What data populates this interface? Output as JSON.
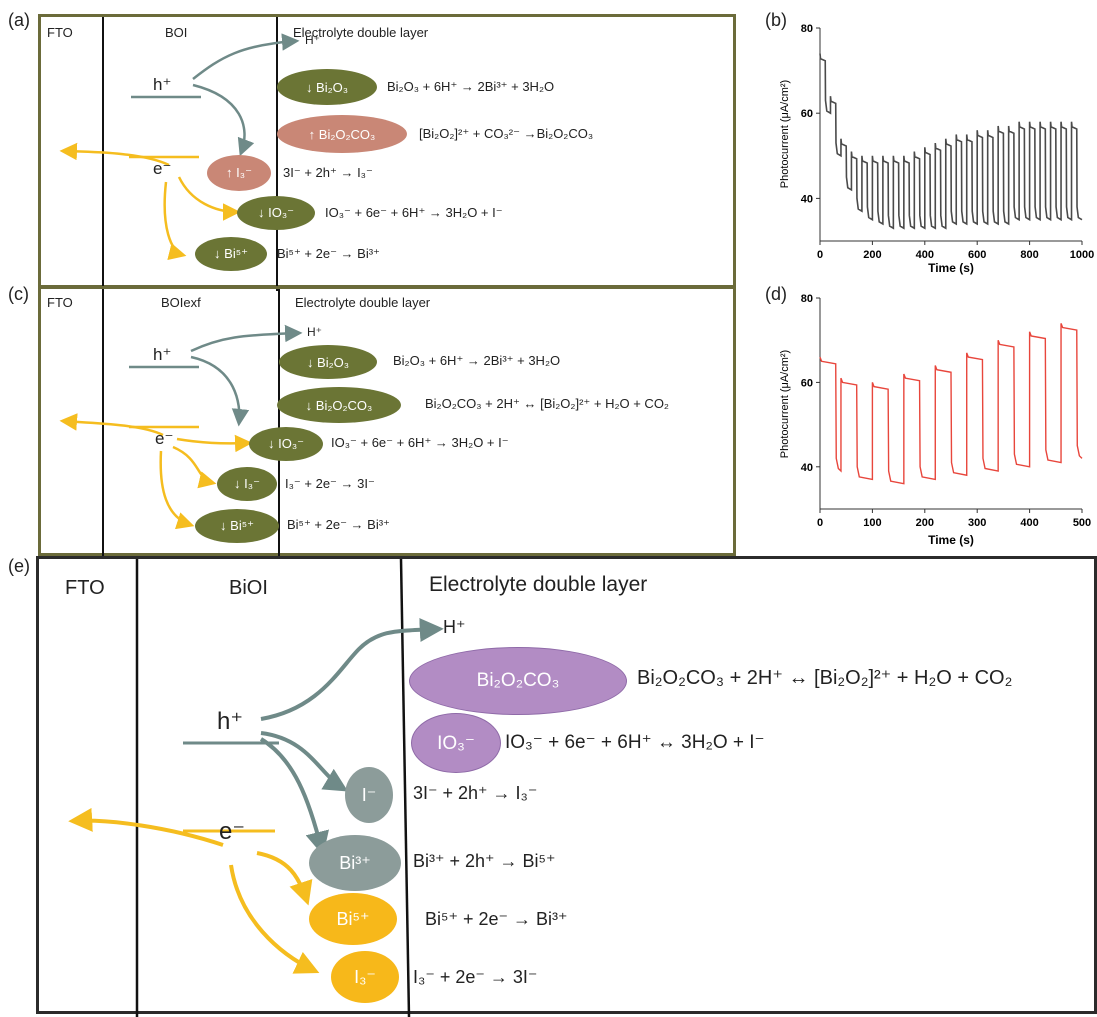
{
  "panel_labels": {
    "a": "(a)",
    "b": "(b)",
    "c": "(c)",
    "d": "(d)",
    "e": "(e)"
  },
  "panel_a": {
    "fto": "FTO",
    "material": "BOI",
    "layer": "Electrolyte double layer",
    "h_plus": "h⁺",
    "e_minus": "e⁻",
    "h_product": "H⁺",
    "eq1": "Bi₂O₃ + 6H⁺ → 2Bi³⁺ + 3H₂O",
    "eq2": "[Bi₂O₂]²⁺ + CO₃²⁻ →Bi₂O₂CO₃",
    "eq3": "3I⁻ + 2h⁺ → I₃⁻",
    "eq4": "IO₃⁻ + 6e⁻ + 6H⁺ → 3H₂O + I⁻",
    "eq5": "Bi⁵⁺ + 2e⁻ → Bi³⁺",
    "sp1": "↓ Bi₂O₃",
    "sp2": "↑ Bi₂O₂CO₃",
    "sp3": "↑ I₃⁻",
    "sp4": "↓ IO₃⁻",
    "sp5": "↓ Bi⁵⁺"
  },
  "panel_c": {
    "fto": "FTO",
    "material": "BOIexf",
    "layer": "Electrolyte double layer",
    "h_plus": "h⁺",
    "e_minus": "e⁻",
    "h_product": "H⁺",
    "eq1": "Bi₂O₃ + 6H⁺ → 2Bi³⁺ + 3H₂O",
    "eq2": "Bi₂O₂CO₃ + 2H⁺ ↔ [Bi₂O₂]²⁺ + H₂O + CO₂",
    "eq3": "IO₃⁻ + 6e⁻ + 6H⁺ → 3H₂O + I⁻",
    "eq4": "I₃⁻ + 2e⁻ → 3I⁻",
    "eq5": "Bi⁵⁺ + 2e⁻ → Bi³⁺",
    "sp1": "↓ Bi₂O₃",
    "sp2": "↓ Bi₂O₂CO₃",
    "sp3": "↓ IO₃⁻",
    "sp4": "↓ I₃⁻",
    "sp5": "↓ Bi⁵⁺"
  },
  "panel_e": {
    "fto": "FTO",
    "material": "BiOI",
    "layer": "Electrolyte double layer",
    "h_plus": "h⁺",
    "e_minus": "e⁻",
    "h_product": "H⁺",
    "eq1": "Bi₂O₂CO₃ + 2H⁺ ↔ [Bi₂O₂]²⁺ + H₂O + CO₂",
    "eq2": "IO₃⁻ + 6e⁻ + 6H⁺ ↔ 3H₂O + I⁻",
    "eq3": "3I⁻ + 2h⁺ → I₃⁻",
    "eq4": "Bi³⁺ + 2h⁺ → Bi⁵⁺",
    "eq5": "Bi⁵⁺ + 2e⁻ → Bi³⁺",
    "eq6": "I₃⁻ + 2e⁻ → 3I⁻",
    "sp1": "Bi₂O₂CO₃",
    "sp2": "IO₃⁻",
    "sp3": "I⁻",
    "sp4": "Bi³⁺",
    "sp5": "Bi⁵⁺",
    "sp6": "I₃⁻"
  },
  "colors": {
    "hole_arrow": "#6f8a88",
    "electron_arrow": "#f5bd1f",
    "chart_b": "#4a4a4a",
    "chart_d": "#e8463c"
  },
  "chart_data": [
    {
      "type": "line",
      "panel": "b",
      "xlabel": "Time (s)",
      "ylabel": "Photocurrent (μA/cm²)",
      "xlim": [
        0,
        1000
      ],
      "ylim": [
        30,
        80
      ],
      "xticks": [
        0,
        200,
        400,
        600,
        800,
        1000
      ],
      "yticks": [
        40,
        60,
        80
      ],
      "pattern": "chopped light on/off",
      "cycle_period_s": 40,
      "on_values": [
        74,
        64,
        54,
        51,
        50,
        50,
        50,
        50,
        50,
        51,
        52,
        53,
        54,
        55,
        55,
        56,
        56,
        57,
        57,
        58,
        58,
        58,
        58,
        58,
        58
      ],
      "off_values": [
        60,
        50,
        42,
        37,
        35,
        34,
        33,
        33,
        33,
        33,
        33,
        33,
        34,
        34,
        34,
        34,
        34,
        34,
        35,
        35,
        35,
        35,
        35,
        35,
        35
      ]
    },
    {
      "type": "line",
      "panel": "d",
      "xlabel": "Time (s)",
      "ylabel": "Photocurrent (μA/cm²)",
      "xlim": [
        0,
        500
      ],
      "ylim": [
        30,
        80
      ],
      "xticks": [
        0,
        100,
        200,
        300,
        400,
        500
      ],
      "yticks": [
        40,
        60,
        80
      ],
      "pattern": "chopped light on/off",
      "cycles": [
        {
          "on_start": 0,
          "on_end": 30,
          "on": 66,
          "off": 39
        },
        {
          "on_start": 40,
          "on_end": 70,
          "on": 61,
          "off": 37
        },
        {
          "on_start": 100,
          "on_end": 130,
          "on": 60,
          "off": 36
        },
        {
          "on_start": 160,
          "on_end": 190,
          "on": 62,
          "off": 37
        },
        {
          "on_start": 220,
          "on_end": 250,
          "on": 64,
          "off": 38
        },
        {
          "on_start": 280,
          "on_end": 310,
          "on": 67,
          "off": 39
        },
        {
          "on_start": 340,
          "on_end": 370,
          "on": 70,
          "off": 40
        },
        {
          "on_start": 400,
          "on_end": 430,
          "on": 72,
          "off": 41
        },
        {
          "on_start": 460,
          "on_end": 490,
          "on": 74,
          "off": 42
        }
      ]
    }
  ]
}
